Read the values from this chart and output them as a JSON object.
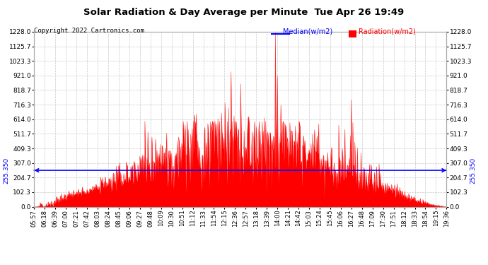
{
  "title": "Solar Radiation & Day Average per Minute  Tue Apr 26 19:49",
  "copyright": "Copyright 2022 Cartronics.com",
  "legend_median": "Median(w/m2)",
  "legend_radiation": "Radiation(w/m2)",
  "median_value": 255.35,
  "ylim": [
    0.0,
    1228.0
  ],
  "yticks": [
    0.0,
    102.3,
    204.7,
    307.0,
    409.3,
    511.7,
    614.0,
    716.3,
    818.7,
    921.0,
    1023.3,
    1125.7,
    1228.0
  ],
  "median_label": "255.350",
  "bg_color": "#ffffff",
  "plot_bg_color": "#ffffff",
  "grid_color": "#c8c8c8",
  "fill_color": "#ff0000",
  "median_color": "#0000ff",
  "title_color": "#000000",
  "copyright_color": "#000000",
  "time_labels": [
    "05:57",
    "06:18",
    "06:39",
    "07:00",
    "07:21",
    "07:42",
    "08:03",
    "08:24",
    "08:45",
    "09:06",
    "09:27",
    "09:48",
    "10:09",
    "10:30",
    "10:51",
    "11:12",
    "11:33",
    "11:54",
    "12:15",
    "12:36",
    "12:57",
    "13:18",
    "13:39",
    "14:00",
    "14:21",
    "14:42",
    "15:03",
    "15:24",
    "15:45",
    "16:06",
    "16:27",
    "16:48",
    "17:09",
    "17:30",
    "17:51",
    "18:12",
    "18:33",
    "18:54",
    "19:15",
    "19:36"
  ]
}
